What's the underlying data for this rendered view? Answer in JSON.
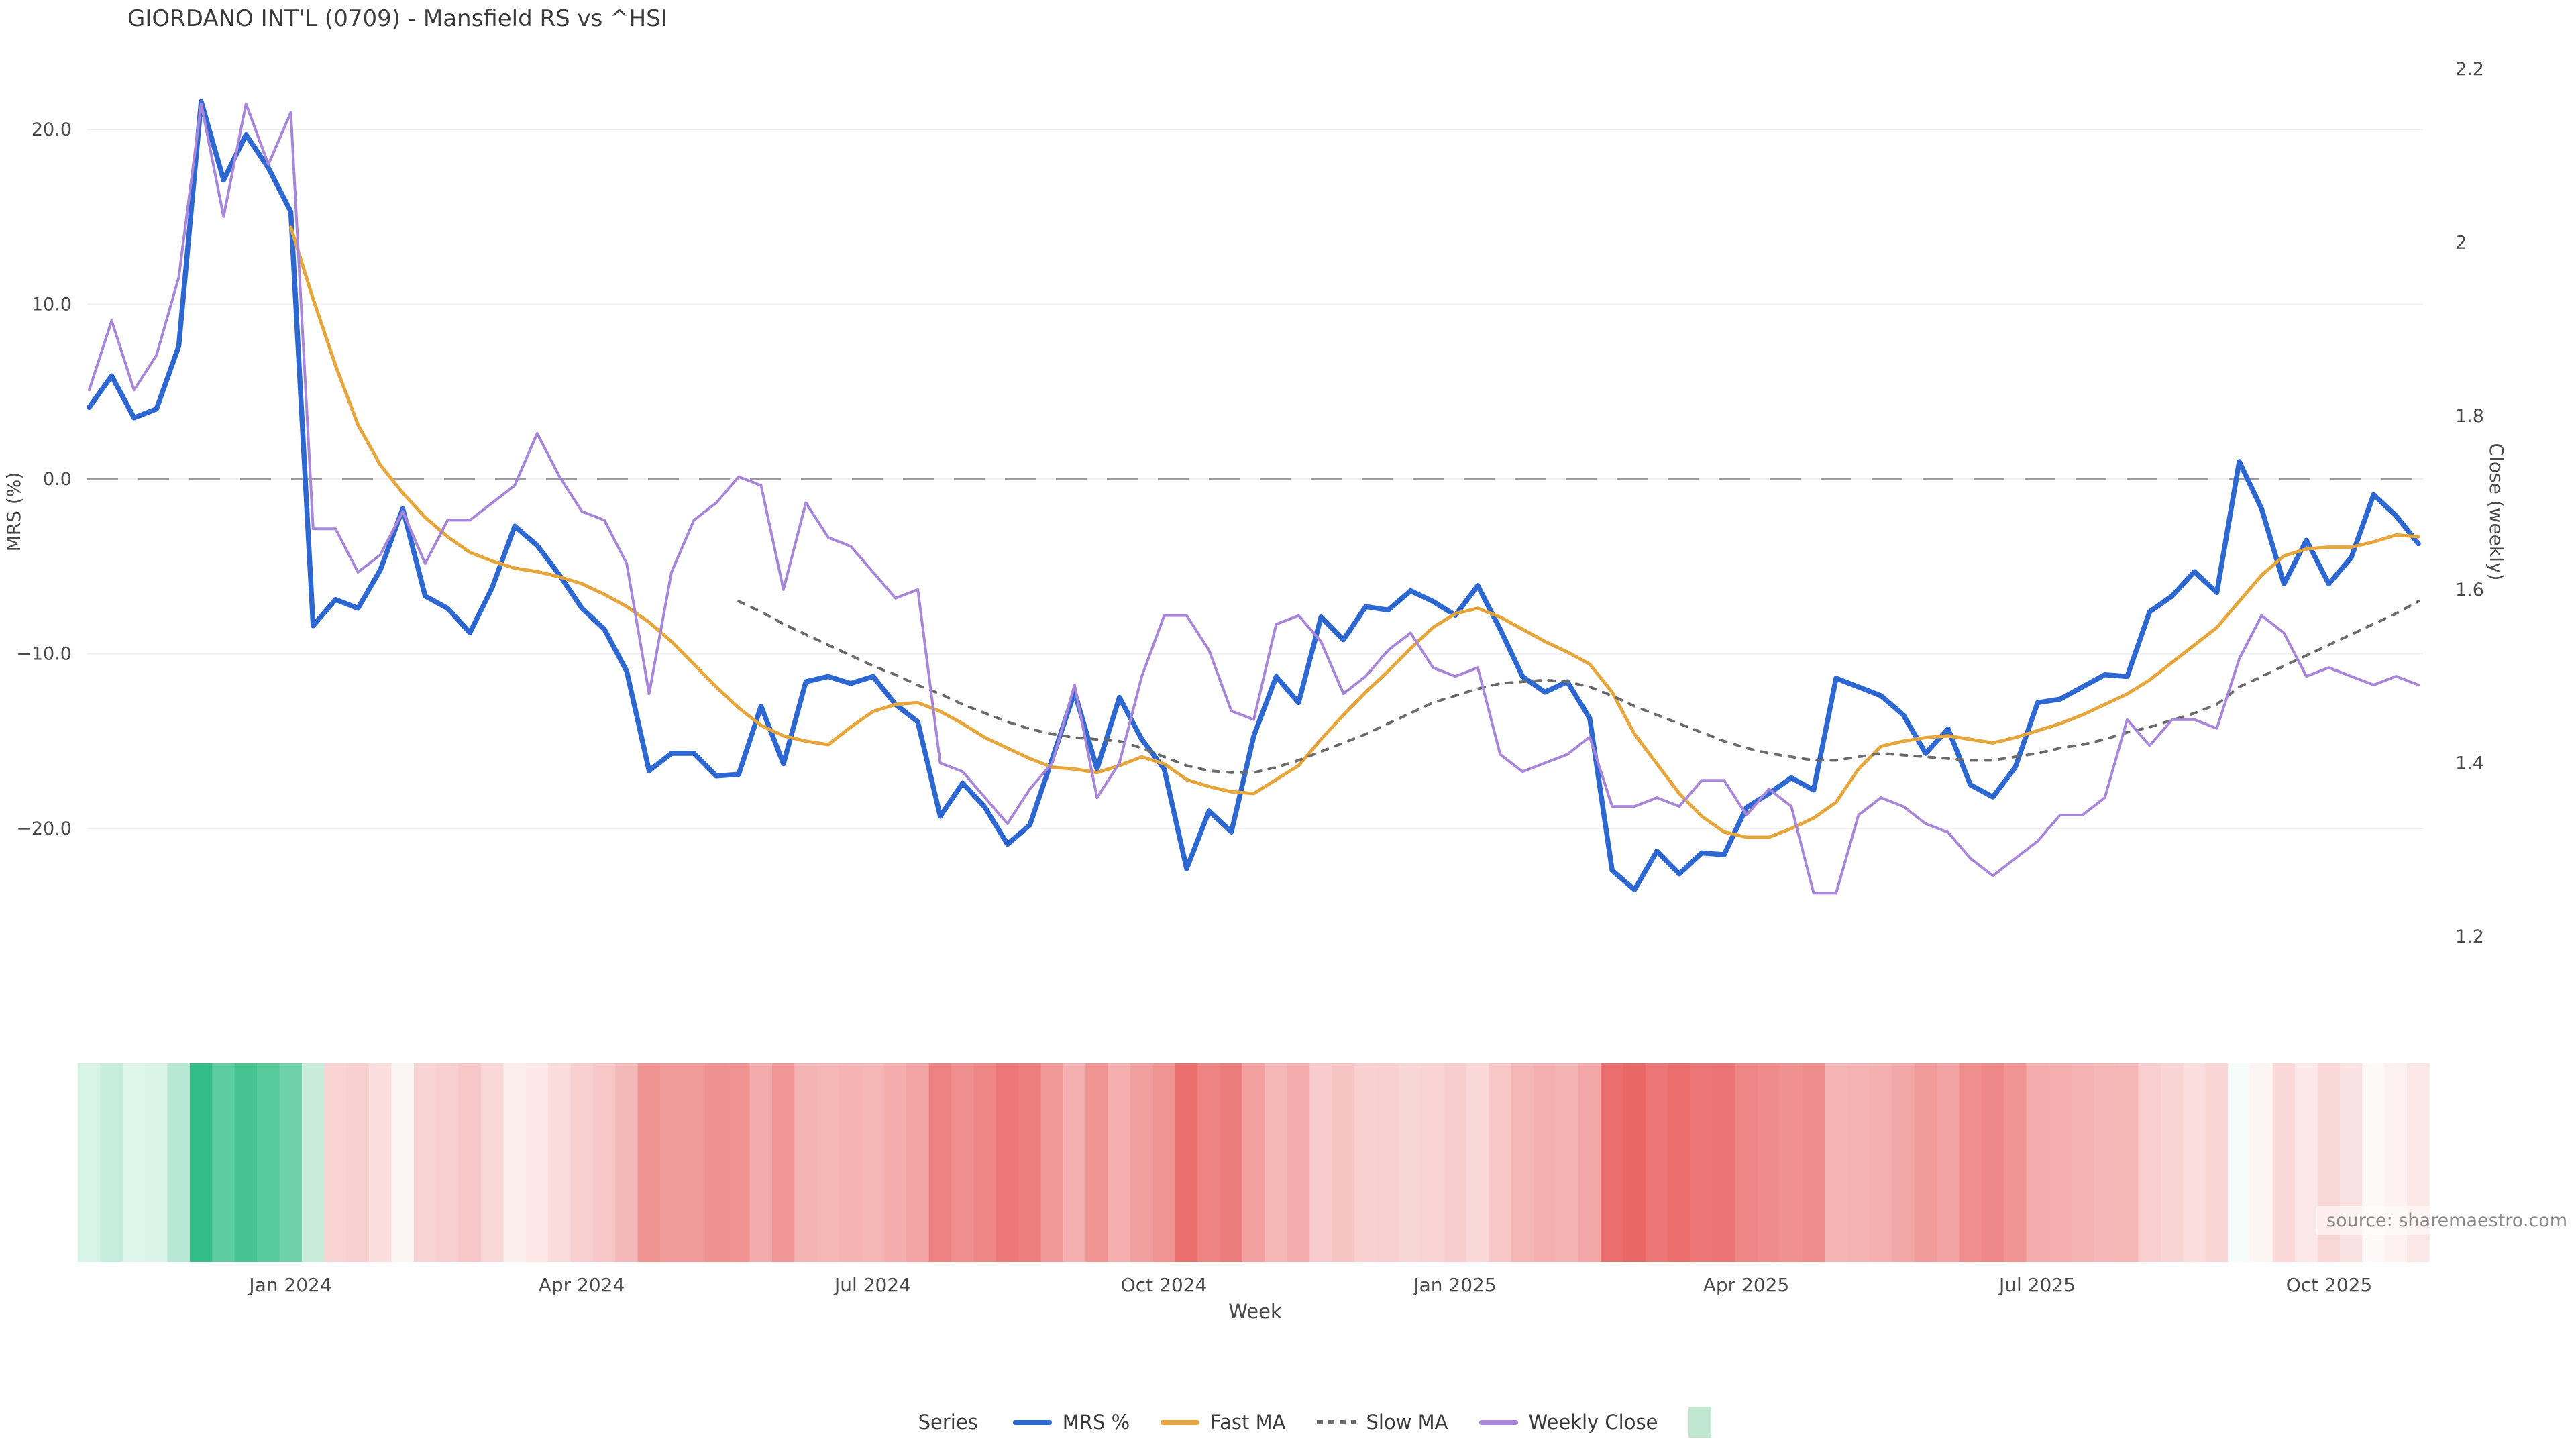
{
  "title": "GIORDANO INT'L (0709) - Mansfield RS vs ^HSI",
  "source_note": "source: sharemaestro.com",
  "legend": {
    "title": "Series",
    "heatmap_swatch_color": "#bfe7d1"
  },
  "chart_data": {
    "type": "line",
    "title": "GIORDANO INT'L (0709) - Mansfield RS vs ^HSI",
    "xlabel": "Week",
    "x_is_weekly_index": true,
    "n_points": 105,
    "x_ticks": [
      {
        "label": "Jan 2024",
        "week": 9
      },
      {
        "label": "Apr 2024",
        "week": 22
      },
      {
        "label": "Jul 2024",
        "week": 35
      },
      {
        "label": "Oct 2024",
        "week": 48
      },
      {
        "label": "Jan 2025",
        "week": 61
      },
      {
        "label": "Apr 2025",
        "week": 74
      },
      {
        "label": "Jul 2025",
        "week": 87
      },
      {
        "label": "Oct 2025",
        "week": 100
      }
    ],
    "y_left": {
      "label": "MRS (%)",
      "ticks": [
        {
          "v": 20,
          "label": "20.0"
        },
        {
          "v": 10,
          "label": "10.0"
        },
        {
          "v": 0,
          "label": "0.0"
        },
        {
          "v": -10,
          "label": "−10.0"
        },
        {
          "v": -20,
          "label": "−20.0"
        }
      ],
      "range_hint": [
        -28,
        23.5
      ]
    },
    "y_right": {
      "label": "Close (weekly)",
      "ticks": [
        {
          "v": 2.2,
          "label": "2.2"
        },
        {
          "v": 2.0,
          "label": "2"
        },
        {
          "v": 1.8,
          "label": "1.8"
        },
        {
          "v": 1.6,
          "label": "1.6"
        },
        {
          "v": 1.4,
          "label": "1.4"
        },
        {
          "v": 1.2,
          "label": "1.2"
        }
      ]
    },
    "zero_line": {
      "value": 0,
      "color": "#9b9ba3",
      "style": "dashed"
    },
    "grid": {
      "color": "#ededf3",
      "horizontal_only": true
    },
    "series": [
      {
        "name": "MRS %",
        "color": "#2d68d2",
        "axis": "left",
        "style": "solid",
        "width": 7.5,
        "values": [
          4.1,
          5.9,
          3.5,
          4.0,
          7.6,
          21.6,
          17.1,
          19.7,
          17.8,
          15.3,
          -8.4,
          -6.9,
          -7.4,
          -5.2,
          -1.7,
          -6.7,
          -7.4,
          -8.8,
          -6.2,
          -2.7,
          -3.8,
          -5.5,
          -7.4,
          -8.6,
          -11.0,
          -16.7,
          -15.7,
          -15.7,
          -17.0,
          -16.9,
          -13.0,
          -16.3,
          -11.6,
          -11.3,
          -11.7,
          -11.3,
          -12.9,
          -13.9,
          -19.3,
          -17.4,
          -18.8,
          -20.9,
          -19.8,
          -16.0,
          -12.2,
          -16.6,
          -12.5,
          -14.9,
          -16.6,
          -22.3,
          -19.0,
          -20.2,
          -14.7,
          -11.3,
          -12.8,
          -7.9,
          -9.2,
          -7.3,
          -7.5,
          -6.4,
          -7.0,
          -7.8,
          -6.1,
          -8.6,
          -11.3,
          -12.2,
          -11.6,
          -13.7,
          -22.4,
          -23.5,
          -21.3,
          -22.6,
          -21.4,
          -21.5,
          -18.8,
          -18.0,
          -17.1,
          -17.8,
          -11.4,
          -11.9,
          -12.4,
          -13.5,
          -15.7,
          -14.3,
          -17.5,
          -18.2,
          -16.5,
          -12.8,
          -12.6,
          -11.9,
          -11.2,
          -11.3,
          -7.6,
          -6.7,
          -5.3,
          -6.5,
          1.0,
          -1.7,
          -6.0,
          -3.5,
          -6.0,
          -4.5,
          -0.9,
          -2.1,
          -3.7
        ]
      },
      {
        "name": "Fast MA",
        "color": "#e6a63c",
        "axis": "left",
        "style": "solid",
        "width": 5,
        "values": [
          null,
          null,
          null,
          null,
          null,
          null,
          null,
          null,
          null,
          14.4,
          10.3,
          6.5,
          3.1,
          0.8,
          -0.8,
          -2.2,
          -3.3,
          -4.2,
          -4.7,
          -5.1,
          -5.3,
          -5.6,
          -6.0,
          -6.6,
          -7.3,
          -8.2,
          -9.3,
          -10.6,
          -11.9,
          -13.1,
          -14.1,
          -14.7,
          -15.0,
          -15.2,
          -14.2,
          -13.3,
          -12.9,
          -12.8,
          -13.3,
          -14.0,
          -14.8,
          -15.4,
          -16.0,
          -16.5,
          -16.6,
          -16.8,
          -16.4,
          -15.9,
          -16.3,
          -17.2,
          -17.6,
          -17.9,
          -18.0,
          -17.2,
          -16.4,
          -14.9,
          -13.5,
          -12.2,
          -11.0,
          -9.7,
          -8.5,
          -7.7,
          -7.4,
          -7.9,
          -8.6,
          -9.3,
          -9.9,
          -10.6,
          -12.2,
          -14.6,
          -16.3,
          -18.0,
          -19.3,
          -20.2,
          -20.5,
          -20.5,
          -20.0,
          -19.4,
          -18.5,
          -16.6,
          -15.3,
          -15.0,
          -14.8,
          -14.7,
          -14.9,
          -15.1,
          -14.8,
          -14.4,
          -14.0,
          -13.5,
          -12.9,
          -12.3,
          -11.5,
          -10.5,
          -9.5,
          -8.5,
          -7.0,
          -5.5,
          -4.4,
          -4.0,
          -3.9,
          -3.9,
          -3.6,
          -3.2,
          -3.3
        ]
      },
      {
        "name": "Slow MA",
        "color": "#6b6b6b",
        "axis": "left",
        "style": "dashed",
        "width": 4,
        "values": [
          null,
          null,
          null,
          null,
          null,
          null,
          null,
          null,
          null,
          null,
          null,
          null,
          null,
          null,
          null,
          null,
          null,
          null,
          null,
          null,
          null,
          null,
          null,
          null,
          null,
          null,
          null,
          null,
          null,
          -7.0,
          -7.6,
          -8.3,
          -8.9,
          -9.5,
          -10.1,
          -10.7,
          -11.2,
          -11.8,
          -12.3,
          -12.9,
          -13.4,
          -13.9,
          -14.3,
          -14.6,
          -14.8,
          -14.9,
          -15.0,
          -15.4,
          -15.9,
          -16.4,
          -16.7,
          -16.8,
          -16.8,
          -16.5,
          -16.1,
          -15.6,
          -15.1,
          -14.6,
          -14.0,
          -13.4,
          -12.8,
          -12.4,
          -12.0,
          -11.7,
          -11.6,
          -11.5,
          -11.6,
          -11.9,
          -12.4,
          -13.0,
          -13.5,
          -14.0,
          -14.5,
          -15.0,
          -15.4,
          -15.7,
          -15.9,
          -16.1,
          -16.1,
          -15.9,
          -15.7,
          -15.8,
          -15.9,
          -16.0,
          -16.1,
          -16.1,
          -15.9,
          -15.7,
          -15.4,
          -15.2,
          -14.9,
          -14.5,
          -14.2,
          -13.8,
          -13.4,
          -12.9,
          -11.9,
          -11.3,
          -10.7,
          -10.1,
          -9.5,
          -8.9,
          -8.3,
          -7.7,
          -7.0
        ]
      },
      {
        "name": "Weekly Close",
        "color": "#a886d9",
        "axis": "right",
        "style": "solid",
        "width": 4,
        "values": [
          1.83,
          1.91,
          1.83,
          1.87,
          1.96,
          2.16,
          2.03,
          2.16,
          2.09,
          2.15,
          1.67,
          1.67,
          1.62,
          1.64,
          1.69,
          1.63,
          1.68,
          1.68,
          1.7,
          1.72,
          1.78,
          1.73,
          1.69,
          1.68,
          1.63,
          1.48,
          1.62,
          1.68,
          1.7,
          1.73,
          1.72,
          1.6,
          1.7,
          1.66,
          1.65,
          1.62,
          1.59,
          1.6,
          1.4,
          1.39,
          1.36,
          1.33,
          1.37,
          1.4,
          1.49,
          1.36,
          1.4,
          1.5,
          1.57,
          1.57,
          1.53,
          1.46,
          1.45,
          1.56,
          1.57,
          1.54,
          1.48,
          1.5,
          1.53,
          1.55,
          1.51,
          1.5,
          1.51,
          1.41,
          1.39,
          1.4,
          1.41,
          1.43,
          1.35,
          1.35,
          1.36,
          1.35,
          1.38,
          1.38,
          1.34,
          1.37,
          1.35,
          1.25,
          1.25,
          1.34,
          1.36,
          1.35,
          1.33,
          1.32,
          1.29,
          1.27,
          1.29,
          1.31,
          1.34,
          1.34,
          1.36,
          1.45,
          1.42,
          1.45,
          1.45,
          1.44,
          1.52,
          1.57,
          1.55,
          1.5,
          1.51,
          1.5,
          1.49,
          1.5,
          1.49
        ]
      }
    ],
    "heatmap": {
      "description": "weekly strip colored by MRS % value",
      "source_series": "MRS %",
      "positive_color": "#2fbd85",
      "negative_color": "#e85757",
      "positive_max_abs": 22,
      "negative_max_abs": 26,
      "overrides": {
        "10": "#c9ebda"
      }
    }
  }
}
